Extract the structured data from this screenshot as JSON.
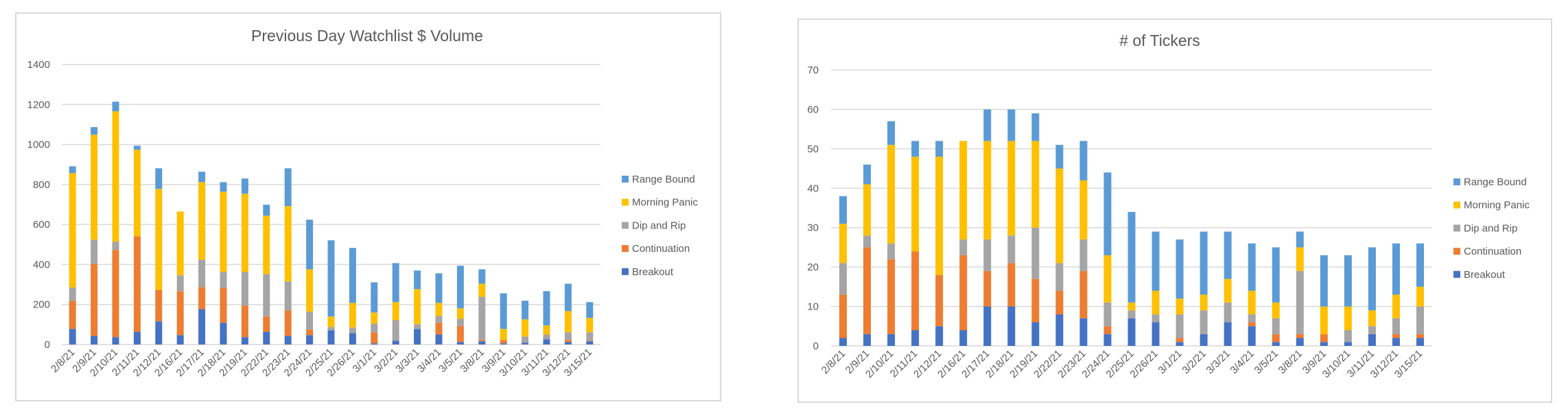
{
  "chart_data": [
    {
      "type": "bar",
      "stacked": true,
      "title": "Previous Day Watchlist $ Volume",
      "xlabel": "",
      "ylabel": "",
      "ylim": [
        0,
        1400
      ],
      "yticks": [
        "0",
        "200",
        "400",
        "600",
        "800",
        "1000",
        "1200",
        "1400"
      ],
      "grid": true,
      "legend_position": "right",
      "categories": [
        "2/8/21",
        "2/9/21",
        "2/10/21",
        "2/11/21",
        "2/12/21",
        "2/16/21",
        "2/17/21",
        "2/18/21",
        "2/19/21",
        "2/22/21",
        "2/23/21",
        "2/24/21",
        "2/25/21",
        "2/26/21",
        "3/1/21",
        "3/2/21",
        "3/3/21",
        "3/4/21",
        "3/5/21",
        "3/8/21",
        "3/9/21",
        "3/10/21",
        "3/11/21",
        "3/12/21",
        "3/15/21"
      ],
      "series": [
        {
          "name": "Breakout",
          "color": "#4472C4",
          "values": [
            78,
            43,
            37,
            64,
            116,
            47,
            177,
            109,
            37,
            64,
            43,
            47,
            71,
            57,
            6,
            19,
            78,
            50,
            13,
            16,
            6,
            9,
            26,
            13,
            16
          ]
        },
        {
          "name": "Continuation",
          "color": "#ED7D31",
          "values": [
            140,
            361,
            436,
            477,
            157,
            220,
            110,
            175,
            158,
            76,
            127,
            27,
            0,
            0,
            55,
            0,
            0,
            59,
            79,
            7,
            17,
            0,
            0,
            10,
            3
          ]
        },
        {
          "name": "Dip and Rip",
          "color": "#A5A5A5",
          "values": [
            67,
            120,
            41,
            0,
            0,
            79,
            137,
            79,
            168,
            212,
            145,
            90,
            17,
            28,
            44,
            103,
            24,
            34,
            37,
            216,
            0,
            31,
            24,
            38,
            42
          ]
        },
        {
          "name": "Morning Panic",
          "color": "#FFC000",
          "values": [
            572,
            525,
            652,
            433,
            505,
            319,
            388,
            401,
            391,
            292,
            377,
            212,
            52,
            123,
            55,
            90,
            175,
            65,
            52,
            65,
            55,
            86,
            45,
            106,
            72
          ]
        },
        {
          "name": "Range Bound",
          "color": "#5B9BD5",
          "values": [
            34,
            38,
            48,
            20,
            103,
            0,
            52,
            48,
            76,
            55,
            189,
            248,
            381,
            275,
            151,
            195,
            93,
            148,
            213,
            72,
            178,
            93,
            172,
            137,
            79
          ]
        }
      ],
      "legend": [
        "Range Bound",
        "Morning Panic",
        "Dip and Rip",
        "Continuation",
        "Breakout"
      ]
    },
    {
      "type": "bar",
      "stacked": true,
      "title": "# of Tickers",
      "xlabel": "",
      "ylabel": "",
      "ylim": [
        0,
        70
      ],
      "yticks": [
        "0",
        "10",
        "20",
        "30",
        "40",
        "50",
        "60",
        "70"
      ],
      "grid": true,
      "legend_position": "right",
      "categories": [
        "2/8/21",
        "2/9/21",
        "2/10/21",
        "2/11/21",
        "2/12/21",
        "2/16/21",
        "2/17/21",
        "2/18/21",
        "2/19/21",
        "2/22/21",
        "2/23/21",
        "2/24/21",
        "2/25/21",
        "2/26/21",
        "3/1/21",
        "3/2/21",
        "3/3/21",
        "3/4/21",
        "3/5/21",
        "3/8/21",
        "3/9/21",
        "3/10/21",
        "3/11/21",
        "3/12/21",
        "3/15/21"
      ],
      "series": [
        {
          "name": "Breakout",
          "color": "#4472C4",
          "values": [
            2,
            3,
            3,
            4,
            5,
            4,
            10,
            10,
            6,
            8,
            7,
            3,
            7,
            6,
            1,
            3,
            6,
            5,
            1,
            2,
            1,
            1,
            3,
            2,
            2
          ]
        },
        {
          "name": "Continuation",
          "color": "#ED7D31",
          "values": [
            11,
            22,
            19,
            20,
            13,
            19,
            9,
            11,
            11,
            6,
            12,
            2,
            0,
            0,
            1,
            0,
            0,
            1,
            2,
            1,
            2,
            0,
            0,
            1,
            1
          ]
        },
        {
          "name": "Dip and Rip",
          "color": "#A5A5A5",
          "values": [
            8,
            3,
            4,
            0,
            0,
            4,
            8,
            7,
            13,
            7,
            8,
            6,
            2,
            2,
            6,
            6,
            5,
            2,
            4,
            16,
            0,
            3,
            2,
            4,
            7
          ]
        },
        {
          "name": "Morning Panic",
          "color": "#FFC000",
          "values": [
            10,
            13,
            25,
            24,
            30,
            25,
            25,
            24,
            22,
            24,
            15,
            12,
            2,
            6,
            4,
            4,
            6,
            6,
            4,
            6,
            7,
            6,
            4,
            6,
            5
          ]
        },
        {
          "name": "Range Bound",
          "color": "#5B9BD5",
          "values": [
            7,
            5,
            6,
            4,
            4,
            0,
            8,
            8,
            7,
            6,
            10,
            21,
            23,
            15,
            15,
            16,
            12,
            12,
            14,
            4,
            13,
            13,
            16,
            13,
            11
          ]
        }
      ],
      "legend": [
        "Range Bound",
        "Morning Panic",
        "Dip and Rip",
        "Continuation",
        "Breakout"
      ]
    }
  ]
}
